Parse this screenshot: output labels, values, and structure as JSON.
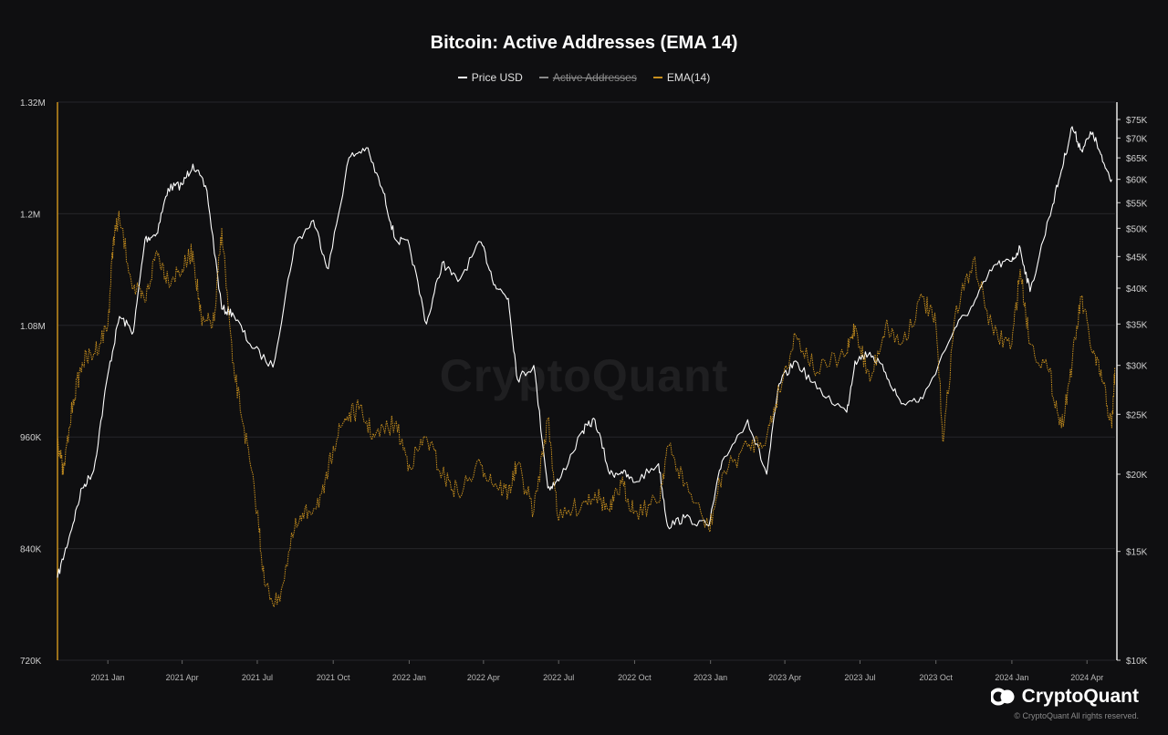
{
  "chart_data": {
    "type": "line",
    "title": "Bitcoin: Active Addresses (EMA 14)",
    "legend": [
      {
        "name": "Price USD",
        "color": "#ffffff",
        "disabled": false
      },
      {
        "name": "Active Addresses",
        "color": "#bdbdbd",
        "disabled": true
      },
      {
        "name": "EMA(14)",
        "color": "#c78f1e",
        "disabled": false
      }
    ],
    "x_ticks": [
      {
        "label": "2021 Jan",
        "date": "2021-01-01"
      },
      {
        "label": "2021 Apr",
        "date": "2021-04-01"
      },
      {
        "label": "2021 Jul",
        "date": "2021-07-01"
      },
      {
        "label": "2021 Oct",
        "date": "2021-10-01"
      },
      {
        "label": "2022 Jan",
        "date": "2022-01-01"
      },
      {
        "label": "2022 Apr",
        "date": "2022-04-01"
      },
      {
        "label": "2022 Jul",
        "date": "2022-07-01"
      },
      {
        "label": "2022 Oct",
        "date": "2022-10-01"
      },
      {
        "label": "2023 Jan",
        "date": "2023-01-01"
      },
      {
        "label": "2023 Apr",
        "date": "2023-04-01"
      },
      {
        "label": "2023 Jul",
        "date": "2023-07-01"
      },
      {
        "label": "2023 Oct",
        "date": "2023-10-01"
      },
      {
        "label": "2024 Jan",
        "date": "2024-01-01"
      },
      {
        "label": "2024 Apr",
        "date": "2024-04-01"
      }
    ],
    "x_range": [
      "2020-11-01",
      "2024-05-05"
    ],
    "left_axis": {
      "ticks": [
        {
          "label": "1.32M",
          "value": 1320000
        },
        {
          "label": "1.2M",
          "value": 1200000
        },
        {
          "label": "1.08M",
          "value": 1080000
        },
        {
          "label": "960K",
          "value": 960000
        },
        {
          "label": "840K",
          "value": 840000
        },
        {
          "label": "720K",
          "value": 720000
        }
      ],
      "range": [
        720000,
        1320000
      ]
    },
    "right_axis": {
      "scale": "log",
      "ticks": [
        {
          "label": "$75K",
          "value": 75000
        },
        {
          "label": "$70K",
          "value": 70000
        },
        {
          "label": "$65K",
          "value": 65000
        },
        {
          "label": "$60K",
          "value": 60000
        },
        {
          "label": "$55K",
          "value": 55000
        },
        {
          "label": "$50K",
          "value": 50000
        },
        {
          "label": "$45K",
          "value": 45000
        },
        {
          "label": "$40K",
          "value": 40000
        },
        {
          "label": "$35K",
          "value": 35000
        },
        {
          "label": "$30K",
          "value": 30000
        },
        {
          "label": "$25K",
          "value": 25000
        },
        {
          "label": "$20K",
          "value": 20000
        },
        {
          "label": "$15K",
          "value": 15000
        },
        {
          "label": "$10K",
          "value": 10000
        }
      ],
      "range": [
        10000,
        80000
      ]
    },
    "grid": true,
    "series": [
      {
        "name": "Price USD",
        "axis": "right",
        "points": [
          [
            "2020-11-01",
            13600
          ],
          [
            "2020-11-15",
            15800
          ],
          [
            "2020-12-01",
            19000
          ],
          [
            "2020-12-15",
            20300
          ],
          [
            "2021-01-01",
            29000
          ],
          [
            "2021-01-15",
            36000
          ],
          [
            "2021-02-01",
            34000
          ],
          [
            "2021-02-15",
            48000
          ],
          [
            "2021-03-01",
            49000
          ],
          [
            "2021-03-15",
            58000
          ],
          [
            "2021-04-01",
            58800
          ],
          [
            "2021-04-14",
            63500
          ],
          [
            "2021-05-01",
            57500
          ],
          [
            "2021-05-19",
            37000
          ],
          [
            "2021-06-01",
            36500
          ],
          [
            "2021-06-22",
            32500
          ],
          [
            "2021-07-20",
            29800
          ],
          [
            "2021-08-15",
            47000
          ],
          [
            "2021-09-07",
            51500
          ],
          [
            "2021-09-25",
            43000
          ],
          [
            "2021-10-20",
            65000
          ],
          [
            "2021-11-10",
            67500
          ],
          [
            "2021-12-01",
            57000
          ],
          [
            "2021-12-15",
            48000
          ],
          [
            "2022-01-01",
            47000
          ],
          [
            "2022-01-22",
            35000
          ],
          [
            "2022-02-10",
            44000
          ],
          [
            "2022-03-01",
            41000
          ],
          [
            "2022-03-29",
            47500
          ],
          [
            "2022-04-15",
            40500
          ],
          [
            "2022-05-01",
            38500
          ],
          [
            "2022-05-12",
            28500
          ],
          [
            "2022-06-01",
            30000
          ],
          [
            "2022-06-18",
            19000
          ],
          [
            "2022-07-01",
            19500
          ],
          [
            "2022-07-30",
            23500
          ],
          [
            "2022-08-14",
            24500
          ],
          [
            "2022-09-01",
            20000
          ],
          [
            "2022-09-15",
            20200
          ],
          [
            "2022-10-01",
            19400
          ],
          [
            "2022-10-30",
            20800
          ],
          [
            "2022-11-10",
            16500
          ],
          [
            "2022-12-01",
            17000
          ],
          [
            "2022-12-30",
            16500
          ],
          [
            "2023-01-15",
            21000
          ],
          [
            "2023-02-15",
            24500
          ],
          [
            "2023-03-10",
            20000
          ],
          [
            "2023-03-25",
            28000
          ],
          [
            "2023-04-14",
            30500
          ],
          [
            "2023-05-10",
            27500
          ],
          [
            "2023-06-15",
            25200
          ],
          [
            "2023-06-25",
            30500
          ],
          [
            "2023-07-13",
            31500
          ],
          [
            "2023-08-01",
            29200
          ],
          [
            "2023-08-20",
            26000
          ],
          [
            "2023-09-15",
            26500
          ],
          [
            "2023-10-24",
            34500
          ],
          [
            "2023-11-15",
            37500
          ],
          [
            "2023-12-10",
            43500
          ],
          [
            "2024-01-01",
            44200
          ],
          [
            "2024-01-11",
            46500
          ],
          [
            "2024-01-23",
            39500
          ],
          [
            "2024-02-15",
            52000
          ],
          [
            "2024-03-01",
            62000
          ],
          [
            "2024-03-14",
            73000
          ],
          [
            "2024-03-25",
            67000
          ],
          [
            "2024-04-08",
            71500
          ],
          [
            "2024-04-20",
            64000
          ],
          [
            "2024-05-01",
            60000
          ]
        ]
      },
      {
        "name": "EMA(14)",
        "axis": "left",
        "points": [
          [
            "2020-11-01",
            960000
          ],
          [
            "2020-11-08",
            920000
          ],
          [
            "2020-11-20",
            1000000
          ],
          [
            "2020-12-01",
            1040000
          ],
          [
            "2020-12-15",
            1050000
          ],
          [
            "2021-01-01",
            1080000
          ],
          [
            "2021-01-08",
            1175000
          ],
          [
            "2021-01-15",
            1195000
          ],
          [
            "2021-02-01",
            1120000
          ],
          [
            "2021-02-15",
            1105000
          ],
          [
            "2021-03-01",
            1160000
          ],
          [
            "2021-03-15",
            1130000
          ],
          [
            "2021-04-01",
            1140000
          ],
          [
            "2021-04-14",
            1160000
          ],
          [
            "2021-04-25",
            1080000
          ],
          [
            "2021-05-10",
            1085000
          ],
          [
            "2021-05-19",
            1185000
          ],
          [
            "2021-06-01",
            1040000
          ],
          [
            "2021-06-15",
            970000
          ],
          [
            "2021-07-01",
            880000
          ],
          [
            "2021-07-10",
            800000
          ],
          [
            "2021-07-25",
            780000
          ],
          [
            "2021-08-15",
            860000
          ],
          [
            "2021-09-01",
            880000
          ],
          [
            "2021-09-20",
            900000
          ],
          [
            "2021-10-01",
            950000
          ],
          [
            "2021-10-15",
            980000
          ],
          [
            "2021-11-01",
            990000
          ],
          [
            "2021-11-20",
            960000
          ],
          [
            "2021-12-15",
            975000
          ],
          [
            "2022-01-01",
            930000
          ],
          [
            "2022-01-22",
            960000
          ],
          [
            "2022-02-10",
            920000
          ],
          [
            "2022-03-01",
            900000
          ],
          [
            "2022-03-29",
            930000
          ],
          [
            "2022-04-15",
            910000
          ],
          [
            "2022-05-01",
            900000
          ],
          [
            "2022-05-12",
            930000
          ],
          [
            "2022-06-01",
            880000
          ],
          [
            "2022-06-18",
            980000
          ],
          [
            "2022-07-01",
            870000
          ],
          [
            "2022-07-30",
            890000
          ],
          [
            "2022-08-14",
            900000
          ],
          [
            "2022-09-01",
            880000
          ],
          [
            "2022-09-15",
            910000
          ],
          [
            "2022-10-01",
            880000
          ],
          [
            "2022-10-30",
            890000
          ],
          [
            "2022-11-10",
            950000
          ],
          [
            "2022-12-01",
            910000
          ],
          [
            "2022-12-30",
            860000
          ],
          [
            "2023-01-15",
            920000
          ],
          [
            "2023-02-15",
            950000
          ],
          [
            "2023-03-10",
            960000
          ],
          [
            "2023-03-25",
            1010000
          ],
          [
            "2023-04-14",
            1070000
          ],
          [
            "2023-05-10",
            1030000
          ],
          [
            "2023-06-15",
            1050000
          ],
          [
            "2023-06-25",
            1080000
          ],
          [
            "2023-07-13",
            1020000
          ],
          [
            "2023-08-01",
            1080000
          ],
          [
            "2023-08-20",
            1060000
          ],
          [
            "2023-09-15",
            1110000
          ],
          [
            "2023-10-01",
            1080000
          ],
          [
            "2023-10-10",
            955000
          ],
          [
            "2023-10-24",
            1090000
          ],
          [
            "2023-11-15",
            1150000
          ],
          [
            "2023-12-10",
            1070000
          ],
          [
            "2024-01-01",
            1060000
          ],
          [
            "2024-01-11",
            1140000
          ],
          [
            "2024-01-23",
            1060000
          ],
          [
            "2024-02-15",
            1030000
          ],
          [
            "2024-03-01",
            970000
          ],
          [
            "2024-03-14",
            1040000
          ],
          [
            "2024-03-25",
            1110000
          ],
          [
            "2024-04-08",
            1050000
          ],
          [
            "2024-04-20",
            1020000
          ],
          [
            "2024-05-01",
            970000
          ],
          [
            "2024-05-05",
            1035000
          ]
        ]
      }
    ]
  },
  "watermark": "CryptoQuant",
  "brand": {
    "name": "CryptoQuant",
    "copyright": "© CryptoQuant All rights reserved."
  }
}
